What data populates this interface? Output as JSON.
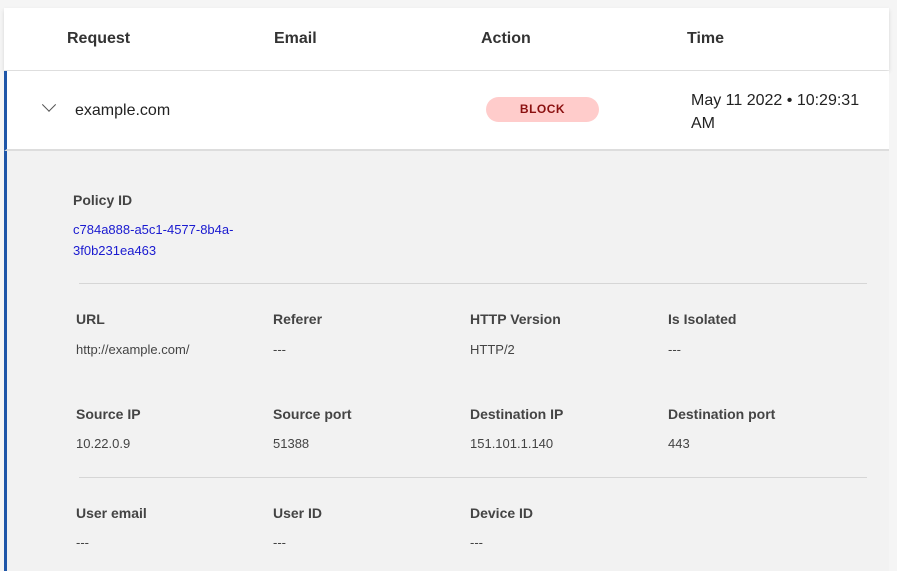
{
  "header": {
    "columns": [
      "Request",
      "Email",
      "Action",
      "Time"
    ]
  },
  "row": {
    "request": "example.com",
    "email": "",
    "action": "BLOCK",
    "time": "May 11 2022 • 10:29:31 AM"
  },
  "colors": {
    "accent": "#1f56a8",
    "block_bg": "#ffcccb",
    "block_text": "#8b1010",
    "link": "#1a1ad0"
  },
  "detail": {
    "policy": {
      "label": "Policy ID",
      "value": "c784a888-a5c1-4577-8b4a-3f0b231ea463"
    },
    "fields": [
      {
        "label": "URL",
        "value": "http://example.com/"
      },
      {
        "label": "Referer",
        "value": "---"
      },
      {
        "label": "HTTP Version",
        "value": "HTTP/2"
      },
      {
        "label": "Is Isolated",
        "value": "---"
      },
      {
        "label": "Source IP",
        "value": "10.22.0.9"
      },
      {
        "label": "Source port",
        "value": "51388"
      },
      {
        "label": "Destination IP",
        "value": "151.101.1.140"
      },
      {
        "label": "Destination port",
        "value": "443"
      },
      {
        "label": "User email",
        "value": "---"
      },
      {
        "label": "User ID",
        "value": "---"
      },
      {
        "label": "Device ID",
        "value": "---"
      }
    ]
  }
}
